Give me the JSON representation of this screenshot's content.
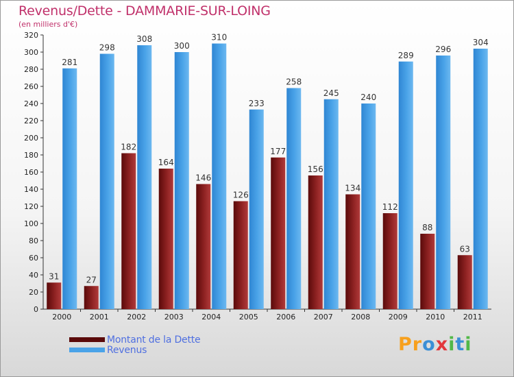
{
  "chart_data": {
    "type": "bar",
    "title": "Revenus/Dette - DAMMARIE-SUR-LOING",
    "subtitle": "(en milliers d'€)",
    "categories": [
      "2000",
      "2001",
      "2002",
      "2003",
      "2004",
      "2005",
      "2006",
      "2007",
      "2008",
      "2009",
      "2010",
      "2011"
    ],
    "series": [
      {
        "name": "Montant de la Dette",
        "values": [
          31,
          27,
          182,
          164,
          146,
          126,
          177,
          156,
          134,
          112,
          88,
          63
        ],
        "color": "#8b1a1a"
      },
      {
        "name": "Revenus",
        "values": [
          281,
          298,
          308,
          300,
          310,
          233,
          258,
          245,
          240,
          289,
          296,
          304
        ],
        "color": "#4aa3e8"
      }
    ],
    "ylim": [
      0,
      320
    ],
    "yticks": [
      0,
      20,
      40,
      60,
      80,
      100,
      120,
      140,
      160,
      180,
      200,
      220,
      240,
      260,
      280,
      300,
      320
    ],
    "grid": false,
    "legend": "bottom-left"
  },
  "logo": {
    "text": "Proxiti",
    "letters": [
      {
        "ch": "P",
        "color": "#f7a01d"
      },
      {
        "ch": "r",
        "color": "#f7a01d"
      },
      {
        "ch": "o",
        "color": "#3b8fd6"
      },
      {
        "ch": "x",
        "color": "#e2373b"
      },
      {
        "ch": "i",
        "color": "#52b848"
      },
      {
        "ch": "t",
        "color": "#3b8fd6"
      },
      {
        "ch": "i",
        "color": "#52b848"
      }
    ]
  }
}
